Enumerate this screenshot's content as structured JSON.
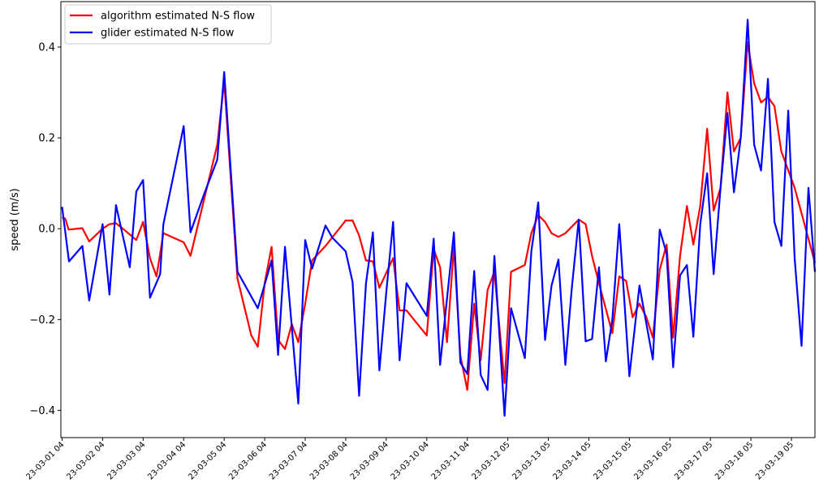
{
  "chart_data": {
    "type": "line",
    "title": "",
    "xlabel": "",
    "ylabel": "speed (m/s)",
    "ylim": [
      -0.46,
      0.5
    ],
    "xlim": [
      -0.03,
      18.58
    ],
    "yticks": [
      -0.4,
      -0.2,
      0.0,
      0.2,
      0.4
    ],
    "ytick_labels": [
      "−0.4",
      "−0.2",
      "0.0",
      "0.2",
      "0.4"
    ],
    "xtick_labels": [
      "23-03-01 04",
      "23-03-02 04",
      "23-03-03 04",
      "23-03-04 04",
      "23-03-05 04",
      "23-03-06 04",
      "23-03-07 04",
      "23-03-08 04",
      "23-03-09 04",
      "23-03-10 04",
      "23-03-11 04",
      "23-03-12 05",
      "23-03-13 05",
      "23-03-14 05",
      "23-03-15 05",
      "23-03-16 05",
      "23-03-17 05",
      "23-03-18 05",
      "23-03-19 05"
    ],
    "grid": false,
    "legend_position": "upper-left",
    "series": [
      {
        "name": "algorithm estimated N-S flow",
        "color": "#ff0000",
        "points": [
          [
            0.0,
            0.025
          ],
          [
            0.08,
            0.022
          ],
          [
            0.16,
            -0.002
          ],
          [
            0.5,
            0.001
          ],
          [
            0.67,
            -0.028
          ],
          [
            1.0,
            0.0
          ],
          [
            1.17,
            0.01
          ],
          [
            1.33,
            0.012
          ],
          [
            1.5,
            0.0
          ],
          [
            1.83,
            -0.025
          ],
          [
            2.0,
            0.015
          ],
          [
            2.17,
            -0.065
          ],
          [
            2.33,
            -0.105
          ],
          [
            2.5,
            -0.01
          ],
          [
            3.0,
            -0.03
          ],
          [
            3.17,
            -0.06
          ],
          [
            3.83,
            0.185
          ],
          [
            4.0,
            0.325
          ],
          [
            4.33,
            -0.11
          ],
          [
            4.67,
            -0.235
          ],
          [
            4.83,
            -0.26
          ],
          [
            5.0,
            -0.12
          ],
          [
            5.17,
            -0.04
          ],
          [
            5.33,
            -0.245
          ],
          [
            5.5,
            -0.265
          ],
          [
            5.67,
            -0.21
          ],
          [
            5.83,
            -0.25
          ],
          [
            6.0,
            -0.165
          ],
          [
            6.17,
            -0.07
          ],
          [
            6.5,
            -0.038
          ],
          [
            7.0,
            0.018
          ],
          [
            7.17,
            0.018
          ],
          [
            7.33,
            -0.015
          ],
          [
            7.5,
            -0.07
          ],
          [
            7.67,
            -0.072
          ],
          [
            7.83,
            -0.13
          ],
          [
            8.17,
            -0.065
          ],
          [
            8.33,
            -0.18
          ],
          [
            8.5,
            -0.18
          ],
          [
            9.0,
            -0.235
          ],
          [
            9.17,
            -0.045
          ],
          [
            9.33,
            -0.085
          ],
          [
            9.5,
            -0.25
          ],
          [
            9.67,
            -0.04
          ],
          [
            9.83,
            -0.28
          ],
          [
            10.0,
            -0.355
          ],
          [
            10.17,
            -0.165
          ],
          [
            10.33,
            -0.29
          ],
          [
            10.5,
            -0.135
          ],
          [
            10.67,
            -0.095
          ],
          [
            10.92,
            -0.34
          ],
          [
            11.08,
            -0.095
          ],
          [
            11.42,
            -0.08
          ],
          [
            11.58,
            -0.01
          ],
          [
            11.75,
            0.03
          ],
          [
            11.92,
            0.015
          ],
          [
            12.08,
            -0.01
          ],
          [
            12.25,
            -0.018
          ],
          [
            12.42,
            -0.01
          ],
          [
            12.75,
            0.02
          ],
          [
            12.92,
            0.01
          ],
          [
            13.08,
            -0.06
          ],
          [
            13.25,
            -0.12
          ],
          [
            13.58,
            -0.23
          ],
          [
            13.75,
            -0.105
          ],
          [
            13.92,
            -0.115
          ],
          [
            14.08,
            -0.195
          ],
          [
            14.25,
            -0.165
          ],
          [
            14.42,
            -0.195
          ],
          [
            14.58,
            -0.24
          ],
          [
            14.75,
            -0.09
          ],
          [
            14.92,
            -0.035
          ],
          [
            15.08,
            -0.24
          ],
          [
            15.25,
            -0.06
          ],
          [
            15.42,
            0.05
          ],
          [
            15.58,
            -0.035
          ],
          [
            15.75,
            0.05
          ],
          [
            15.92,
            0.22
          ],
          [
            16.08,
            0.04
          ],
          [
            16.25,
            0.09
          ],
          [
            16.42,
            0.3
          ],
          [
            16.58,
            0.17
          ],
          [
            16.75,
            0.2
          ],
          [
            16.92,
            0.41
          ],
          [
            17.08,
            0.32
          ],
          [
            17.25,
            0.278
          ],
          [
            17.42,
            0.29
          ],
          [
            17.58,
            0.27
          ],
          [
            17.75,
            0.17
          ],
          [
            18.08,
            0.09
          ],
          [
            18.58,
            -0.075
          ]
        ]
      },
      {
        "name": "glider estimated N-S flow",
        "color": "#0000ff",
        "points": [
          [
            0.0,
            0.048
          ],
          [
            0.17,
            -0.072
          ],
          [
            0.5,
            -0.038
          ],
          [
            0.67,
            -0.158
          ],
          [
            1.0,
            0.01
          ],
          [
            1.17,
            -0.145
          ],
          [
            1.33,
            0.052
          ],
          [
            1.67,
            -0.085
          ],
          [
            1.83,
            0.082
          ],
          [
            2.0,
            0.107
          ],
          [
            2.17,
            -0.152
          ],
          [
            2.42,
            -0.1
          ],
          [
            2.5,
            0.01
          ],
          [
            3.0,
            0.226
          ],
          [
            3.17,
            -0.008
          ],
          [
            3.5,
            0.075
          ],
          [
            3.83,
            0.152
          ],
          [
            4.0,
            0.345
          ],
          [
            4.33,
            -0.095
          ],
          [
            4.83,
            -0.175
          ],
          [
            5.17,
            -0.07
          ],
          [
            5.33,
            -0.278
          ],
          [
            5.5,
            -0.04
          ],
          [
            5.83,
            -0.385
          ],
          [
            6.0,
            -0.025
          ],
          [
            6.17,
            -0.088
          ],
          [
            6.5,
            0.007
          ],
          [
            6.67,
            -0.02
          ],
          [
            7.0,
            -0.05
          ],
          [
            7.17,
            -0.118
          ],
          [
            7.33,
            -0.368
          ],
          [
            7.5,
            -0.12
          ],
          [
            7.67,
            -0.008
          ],
          [
            7.83,
            -0.312
          ],
          [
            8.0,
            -0.14
          ],
          [
            8.17,
            0.015
          ],
          [
            8.33,
            -0.29
          ],
          [
            8.5,
            -0.12
          ],
          [
            9.0,
            -0.192
          ],
          [
            9.17,
            -0.022
          ],
          [
            9.33,
            -0.3
          ],
          [
            9.67,
            -0.008
          ],
          [
            9.83,
            -0.295
          ],
          [
            10.0,
            -0.32
          ],
          [
            10.17,
            -0.093
          ],
          [
            10.33,
            -0.322
          ],
          [
            10.5,
            -0.355
          ],
          [
            10.67,
            -0.06
          ],
          [
            10.92,
            -0.412
          ],
          [
            11.08,
            -0.175
          ],
          [
            11.42,
            -0.285
          ],
          [
            11.58,
            -0.05
          ],
          [
            11.75,
            0.058
          ],
          [
            11.92,
            -0.245
          ],
          [
            12.08,
            -0.125
          ],
          [
            12.25,
            -0.068
          ],
          [
            12.42,
            -0.3
          ],
          [
            12.58,
            -0.13
          ],
          [
            12.75,
            0.02
          ],
          [
            12.92,
            -0.248
          ],
          [
            13.08,
            -0.243
          ],
          [
            13.25,
            -0.085
          ],
          [
            13.42,
            -0.292
          ],
          [
            13.58,
            -0.2
          ],
          [
            13.75,
            0.01
          ],
          [
            14.0,
            -0.325
          ],
          [
            14.25,
            -0.125
          ],
          [
            14.58,
            -0.288
          ],
          [
            14.75,
            -0.002
          ],
          [
            14.92,
            -0.055
          ],
          [
            15.08,
            -0.305
          ],
          [
            15.25,
            -0.103
          ],
          [
            15.42,
            -0.08
          ],
          [
            15.58,
            -0.238
          ],
          [
            15.75,
            0.01
          ],
          [
            15.92,
            0.122
          ],
          [
            16.08,
            -0.1
          ],
          [
            16.25,
            0.09
          ],
          [
            16.42,
            0.255
          ],
          [
            16.58,
            0.08
          ],
          [
            16.75,
            0.2
          ],
          [
            16.92,
            0.46
          ],
          [
            17.08,
            0.185
          ],
          [
            17.25,
            0.128
          ],
          [
            17.42,
            0.33
          ],
          [
            17.58,
            0.015
          ],
          [
            17.75,
            -0.038
          ],
          [
            17.92,
            0.26
          ],
          [
            18.08,
            -0.065
          ],
          [
            18.25,
            -0.258
          ],
          [
            18.42,
            0.09
          ],
          [
            18.58,
            -0.095
          ]
        ]
      }
    ]
  }
}
